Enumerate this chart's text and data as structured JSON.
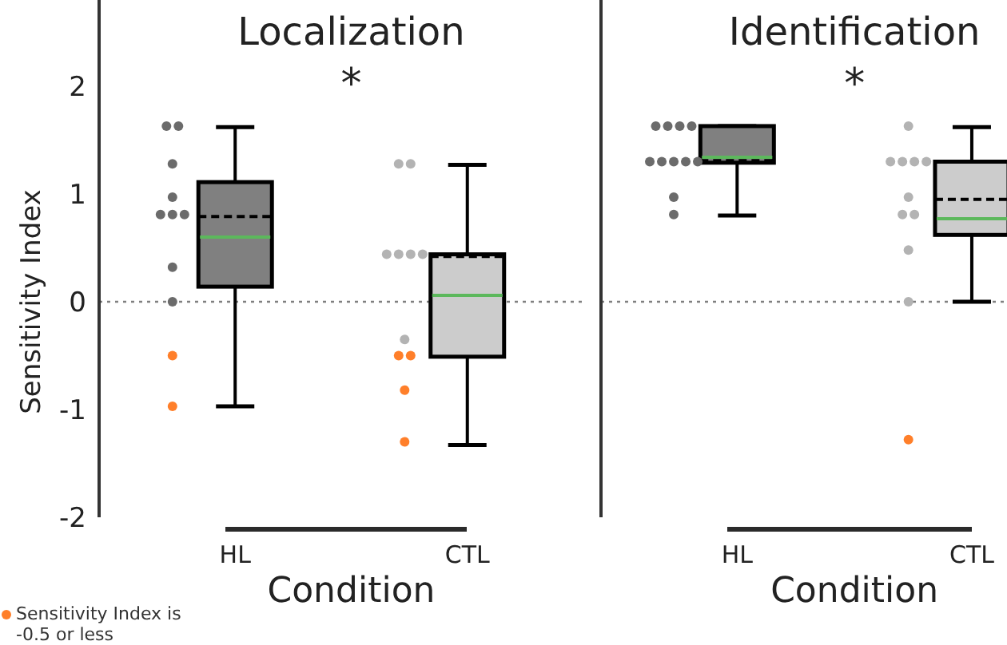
{
  "chart_data": [
    {
      "type": "box",
      "title": "Localization",
      "xlabel": "Condition",
      "ylabel": "Sensitivity Index",
      "annotations": [
        "*"
      ],
      "categories": [
        "HL",
        "CTL"
      ],
      "colors": [
        "#808080",
        "#cccccc"
      ],
      "boxes": [
        {
          "low": -0.97,
          "q1": 0.14,
          "median": 0.6,
          "q3": 1.11,
          "high": 1.62,
          "mean": 0.79
        },
        {
          "low": -1.33,
          "q1": -0.51,
          "median": 0.06,
          "q3": 0.44,
          "high": 1.27,
          "mean": 0.42
        }
      ],
      "series": [
        {
          "type": "scatter",
          "color": "#6b6b6b",
          "x": [
            "HL",
            "HL",
            "HL",
            "HL",
            "HL",
            "HL",
            "HL",
            "HL",
            "HL"
          ],
          "values": [
            1.63,
            1.63,
            1.28,
            0.97,
            0.81,
            0.81,
            0.81,
            0.32,
            0
          ]
        },
        {
          "type": "scatter",
          "color": "#b3b3b3",
          "x": [
            "CTL",
            "CTL",
            "CTL",
            "CTL",
            "CTL",
            "CTL",
            "CTL"
          ],
          "values": [
            1.28,
            1.28,
            0.44,
            0.44,
            0.44,
            0.44,
            -0.35
          ]
        },
        {
          "type": "scatter",
          "name": "Sensitivity Index is -0.5 or less",
          "color": "#ff7f2a",
          "x": [
            "HL",
            "HL",
            "CTL",
            "CTL",
            "CTL",
            "CTL"
          ],
          "values": [
            -0.5,
            -0.97,
            -0.5,
            -0.5,
            -0.82,
            -1.3
          ]
        }
      ],
      "ylim": [
        -2,
        2.8
      ],
      "yticks": [
        -2,
        -1,
        0,
        1,
        2
      ],
      "grid": false,
      "marker": "circle",
      "legend": "bottom left",
      "ref_lines": [
        {
          "axis": "y",
          "value": 0,
          "color": "#808080",
          "line_style": "dotted"
        }
      ]
    },
    {
      "type": "box",
      "title": "Identification",
      "xlabel": "Condition",
      "annotations": [
        "*"
      ],
      "categories": [
        "HL",
        "CTL"
      ],
      "colors": [
        "#808080",
        "#cccccc"
      ],
      "boxes": [
        {
          "low": 0.8,
          "q1": 1.29,
          "median": 1.34,
          "q3": 1.63,
          "high": 1.63,
          "mean": 1.31
        },
        {
          "low": 0,
          "q1": 0.62,
          "median": 0.77,
          "q3": 1.3,
          "high": 1.62,
          "mean": 0.95
        }
      ],
      "series": [
        {
          "type": "scatter",
          "color": "#6b6b6b",
          "x": [
            "HL",
            "HL",
            "HL",
            "HL",
            "HL",
            "HL",
            "HL",
            "HL",
            "HL",
            "HL",
            "HL"
          ],
          "values": [
            1.63,
            1.63,
            1.63,
            1.63,
            1.3,
            1.3,
            1.3,
            1.3,
            1.3,
            0.97,
            0.81
          ]
        },
        {
          "type": "scatter",
          "color": "#b3b3b3",
          "x": [
            "CTL",
            "CTL",
            "CTL",
            "CTL",
            "CTL",
            "CTL",
            "CTL",
            "CTL",
            "CTL",
            "CTL"
          ],
          "values": [
            1.63,
            1.3,
            1.3,
            1.3,
            1.3,
            0.97,
            0.81,
            0.81,
            0.48,
            0
          ]
        },
        {
          "type": "scatter",
          "color": "#ff7f2a",
          "x": [
            "CTL"
          ],
          "values": [
            -1.28
          ]
        }
      ],
      "ylim": [
        -2,
        2.8
      ],
      "yticks": [
        -2,
        -1,
        0,
        1,
        2
      ],
      "grid": false,
      "marker": "circle",
      "tick_labels": "x",
      "ref_lines": [
        {
          "axis": "y",
          "value": 0,
          "color": "#808080",
          "line_style": "dotted"
        }
      ]
    }
  ]
}
